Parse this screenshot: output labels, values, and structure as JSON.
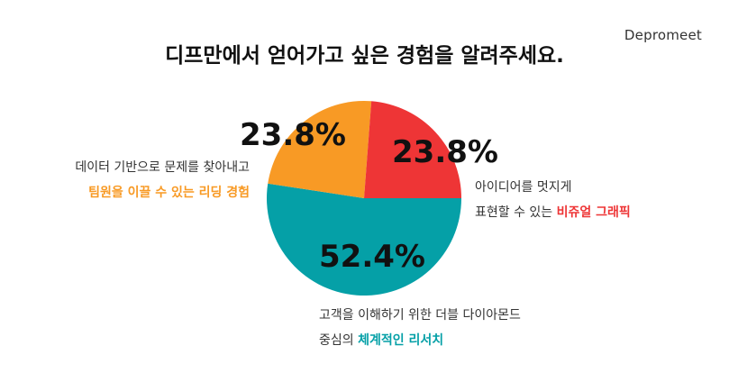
{
  "brand": "Depromeet",
  "chart_data": {
    "type": "pie",
    "title": "디프만에서 얻어가고 싶은 경험을 알려주세요.",
    "slices": [
      {
        "label": "체계적인 리서치",
        "value": 52.4,
        "value_label": "52.4%",
        "color": "#05a0a7"
      },
      {
        "label": "팀원을 이끌 수 있는 리딩 경험",
        "value": 23.8,
        "value_label": "23.8%",
        "color": "#f89a25"
      },
      {
        "label": "비쥬얼 그래픽",
        "value": 23.8,
        "value_label": "23.8%",
        "color": "#ee3536"
      }
    ],
    "annotations": {
      "leading": {
        "line1": "데이터 기반으로 문제를 찾아내고",
        "highlight": "팀원을 이끌 수 있는 리딩 경험",
        "color": "#f89a25"
      },
      "visual": {
        "line1": "아이디어를 멋지게",
        "prefix": "표현할 수 있는 ",
        "highlight": "비쥬얼 그래픽",
        "color": "#ee3536"
      },
      "research": {
        "line1": "고객을 이해하기 위한 더블 다이아몬드",
        "prefix": "중심의 ",
        "highlight": "체계적인 리서치",
        "color": "#05a0a7"
      }
    }
  }
}
